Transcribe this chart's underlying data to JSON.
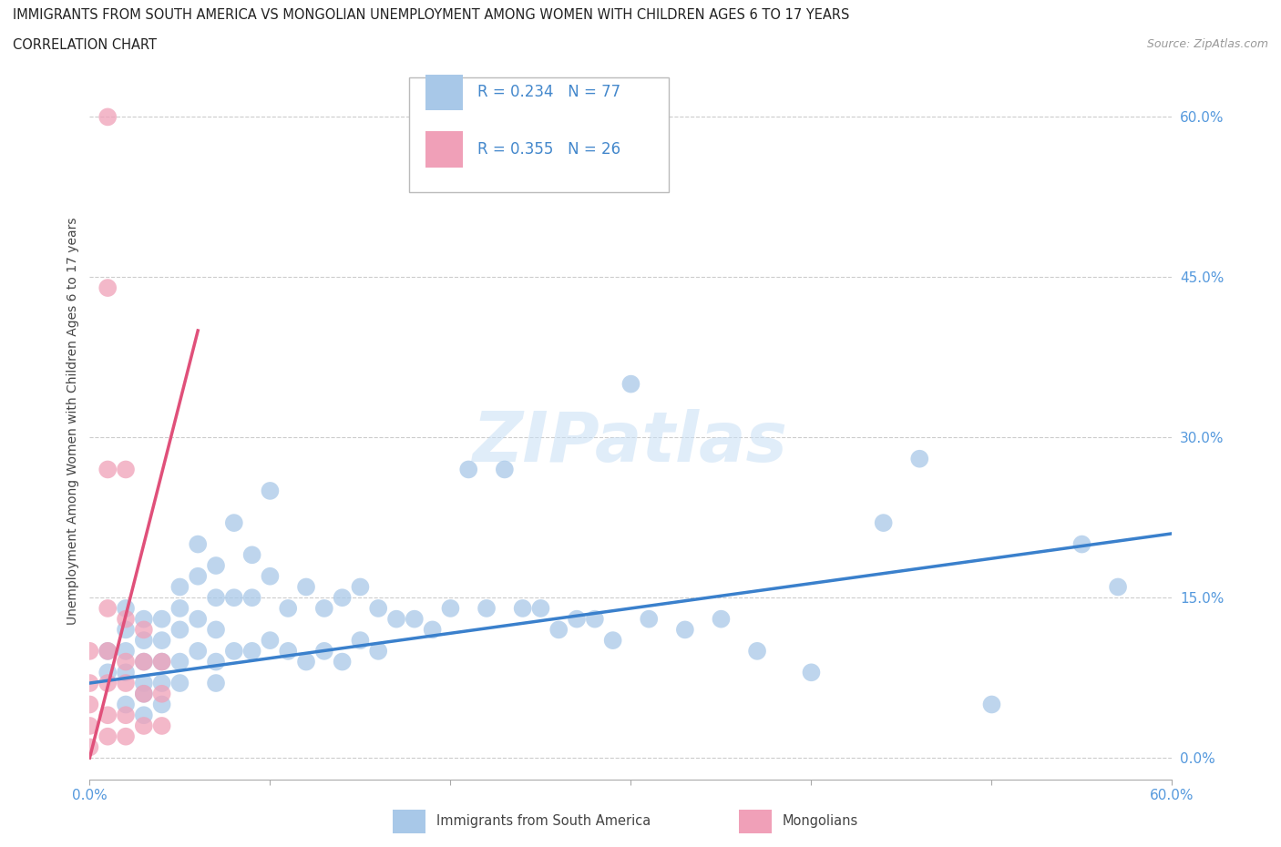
{
  "title_line1": "IMMIGRANTS FROM SOUTH AMERICA VS MONGOLIAN UNEMPLOYMENT AMONG WOMEN WITH CHILDREN AGES 6 TO 17 YEARS",
  "title_line2": "CORRELATION CHART",
  "source": "Source: ZipAtlas.com",
  "ylabel": "Unemployment Among Women with Children Ages 6 to 17 years",
  "xlim": [
    0.0,
    0.6
  ],
  "ylim": [
    -0.02,
    0.65
  ],
  "ytick_positions": [
    0.0,
    0.15,
    0.3,
    0.45,
    0.6
  ],
  "ytick_labels": [
    "0.0%",
    "15.0%",
    "30.0%",
    "45.0%",
    "60.0%"
  ],
  "xtick_positions": [
    0.0,
    0.1,
    0.2,
    0.3,
    0.4,
    0.5,
    0.6
  ],
  "xtick_labels": [
    "0.0%",
    "",
    "",
    "",
    "",
    "",
    "60.0%"
  ],
  "blue_R": 0.234,
  "blue_N": 77,
  "pink_R": 0.355,
  "pink_N": 26,
  "blue_color": "#a8c8e8",
  "pink_color": "#f0a0b8",
  "blue_line_color": "#3a80cc",
  "pink_line_color": "#e0507a",
  "watermark": "ZIPatlas",
  "legend_labels": [
    "Immigrants from South America",
    "Mongolians"
  ],
  "blue_scatter_x": [
    0.01,
    0.01,
    0.02,
    0.02,
    0.02,
    0.02,
    0.02,
    0.03,
    0.03,
    0.03,
    0.03,
    0.03,
    0.03,
    0.04,
    0.04,
    0.04,
    0.04,
    0.04,
    0.05,
    0.05,
    0.05,
    0.05,
    0.05,
    0.06,
    0.06,
    0.06,
    0.06,
    0.07,
    0.07,
    0.07,
    0.07,
    0.07,
    0.08,
    0.08,
    0.08,
    0.09,
    0.09,
    0.09,
    0.1,
    0.1,
    0.1,
    0.11,
    0.11,
    0.12,
    0.12,
    0.13,
    0.13,
    0.14,
    0.14,
    0.15,
    0.15,
    0.16,
    0.16,
    0.17,
    0.18,
    0.19,
    0.2,
    0.21,
    0.22,
    0.23,
    0.24,
    0.25,
    0.26,
    0.27,
    0.28,
    0.29,
    0.3,
    0.31,
    0.33,
    0.35,
    0.37,
    0.4,
    0.44,
    0.46,
    0.5,
    0.55,
    0.57
  ],
  "blue_scatter_y": [
    0.1,
    0.08,
    0.14,
    0.12,
    0.1,
    0.08,
    0.05,
    0.13,
    0.11,
    0.09,
    0.07,
    0.06,
    0.04,
    0.13,
    0.11,
    0.09,
    0.07,
    0.05,
    0.16,
    0.14,
    0.12,
    0.09,
    0.07,
    0.2,
    0.17,
    0.13,
    0.1,
    0.18,
    0.15,
    0.12,
    0.09,
    0.07,
    0.22,
    0.15,
    0.1,
    0.19,
    0.15,
    0.1,
    0.25,
    0.17,
    0.11,
    0.14,
    0.1,
    0.16,
    0.09,
    0.14,
    0.1,
    0.15,
    0.09,
    0.16,
    0.11,
    0.14,
    0.1,
    0.13,
    0.13,
    0.12,
    0.14,
    0.27,
    0.14,
    0.27,
    0.14,
    0.14,
    0.12,
    0.13,
    0.13,
    0.11,
    0.35,
    0.13,
    0.12,
    0.13,
    0.1,
    0.08,
    0.22,
    0.28,
    0.05,
    0.2,
    0.16
  ],
  "pink_scatter_x": [
    0.0,
    0.0,
    0.0,
    0.0,
    0.0,
    0.01,
    0.01,
    0.01,
    0.01,
    0.01,
    0.01,
    0.01,
    0.01,
    0.02,
    0.02,
    0.02,
    0.02,
    0.02,
    0.02,
    0.03,
    0.03,
    0.03,
    0.03,
    0.04,
    0.04,
    0.04
  ],
  "pink_scatter_y": [
    0.1,
    0.07,
    0.05,
    0.03,
    0.01,
    0.6,
    0.44,
    0.27,
    0.14,
    0.1,
    0.07,
    0.04,
    0.02,
    0.27,
    0.13,
    0.09,
    0.07,
    0.04,
    0.02,
    0.12,
    0.09,
    0.06,
    0.03,
    0.09,
    0.06,
    0.03
  ],
  "blue_line_x0": 0.0,
  "blue_line_x1": 0.6,
  "blue_line_y0": 0.07,
  "blue_line_y1": 0.21,
  "pink_line_x0": 0.0,
  "pink_line_x1": 0.06,
  "pink_line_y0": 0.0,
  "pink_line_y1": 0.4
}
